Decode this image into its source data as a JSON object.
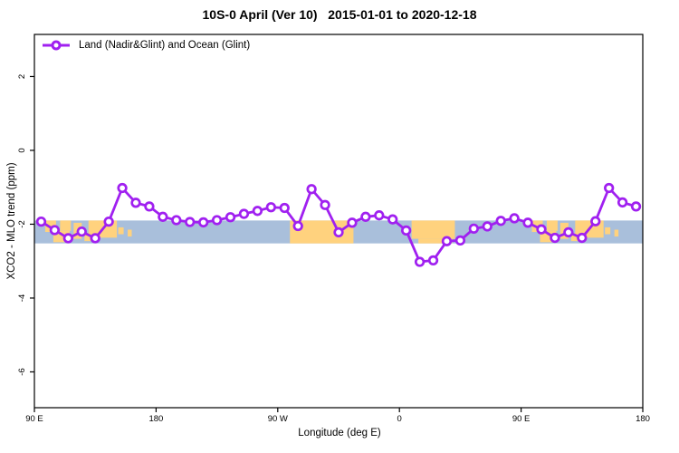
{
  "title": "10S-0 April (Ver 10)   2015-01-01 to 2020-12-18",
  "legend": {
    "label": "Land (Nadir&Glint) and Ocean (Glint)"
  },
  "colors": {
    "line": "#a020f0",
    "marker_fill": "#ffffff",
    "ocean_band": "#a9bfdb",
    "land_band": "#ffd27e",
    "frame": "#000000",
    "text": "#000000"
  },
  "chart_data": {
    "type": "line",
    "title": "10S-0 April (Ver 10)   2015-01-01 to 2020-12-18",
    "xlabel": "Longitude (deg E)",
    "ylabel": "XCO2 - MLO trend (ppm)",
    "xlim": [
      90,
      540
    ],
    "ylim": [
      -6.97,
      3.14
    ],
    "grid": false,
    "legend_position": "top-left-inside",
    "x_ticks": [
      {
        "value": 90,
        "label": "90 E"
      },
      {
        "value": 180,
        "label": "180"
      },
      {
        "value": 270,
        "label": "90 W"
      },
      {
        "value": 360,
        "label": "0"
      },
      {
        "value": 450,
        "label": "90 E"
      },
      {
        "value": 540,
        "label": "180"
      }
    ],
    "y_ticks": [
      {
        "value": 2,
        "label": "2"
      },
      {
        "value": 0,
        "label": "0"
      },
      {
        "value": -2,
        "label": "-2"
      },
      {
        "value": -4,
        "label": "-4"
      },
      {
        "value": -6,
        "label": "-6"
      }
    ],
    "series": [
      {
        "name": "Land (Nadir&Glint) and Ocean (Glint)",
        "marker": "open-circle",
        "x": [
          95,
          105,
          115,
          125,
          135,
          145,
          155,
          165,
          175,
          185,
          195,
          205,
          215,
          225,
          235,
          245,
          255,
          265,
          275,
          285,
          295,
          305,
          315,
          325,
          335,
          345,
          355,
          365,
          375,
          385,
          395,
          405,
          415,
          425,
          435,
          445,
          455,
          465,
          475,
          485,
          495,
          505,
          515,
          525,
          535
        ],
        "y": [
          -1.93,
          -2.16,
          -2.38,
          -2.2,
          -2.38,
          -1.93,
          -1.02,
          -1.42,
          -1.52,
          -1.8,
          -1.89,
          -1.94,
          -1.95,
          -1.89,
          -1.81,
          -1.72,
          -1.64,
          -1.54,
          -1.56,
          -2.05,
          -1.05,
          -1.48,
          -2.22,
          -1.96,
          -1.8,
          -1.76,
          -1.87,
          -2.17,
          -3.02,
          -2.98,
          -2.46,
          -2.44,
          -2.12,
          -2.06,
          -1.91,
          -1.84,
          -1.96,
          -2.14,
          -2.37,
          -2.22,
          -2.37,
          -1.92,
          -1.02,
          -1.41,
          -1.52
        ]
      }
    ],
    "reference_band": {
      "description": "land-ocean map strip for 10S-0 latitude band",
      "y_top": -1.9,
      "y_bottom": -2.52,
      "land_segments": [
        {
          "x0": 98,
          "x1": 106,
          "f0": 0.0,
          "f1": 0.5
        },
        {
          "x0": 104,
          "x1": 116,
          "f0": 0.45,
          "f1": 0.95
        },
        {
          "x0": 109,
          "x1": 117,
          "f0": 0.0,
          "f1": 0.45
        },
        {
          "x0": 119,
          "x1": 125,
          "f0": 0.1,
          "f1": 0.8
        },
        {
          "x0": 127,
          "x1": 132,
          "f0": 0.55,
          "f1": 0.9
        },
        {
          "x0": 130,
          "x1": 151,
          "f0": 0.0,
          "f1": 0.75
        },
        {
          "x0": 152,
          "x1": 156,
          "f0": 0.3,
          "f1": 0.6
        },
        {
          "x0": 159,
          "x1": 162,
          "f0": 0.4,
          "f1": 0.7
        },
        {
          "x0": 279,
          "x1": 326,
          "f0": 0.0,
          "f1": 1.0
        },
        {
          "x0": 369,
          "x1": 401,
          "f0": 0.0,
          "f1": 0.8
        },
        {
          "x0": 374,
          "x1": 399,
          "f0": 0.8,
          "f1": 1.0
        },
        {
          "x0": 458,
          "x1": 466,
          "f0": 0.0,
          "f1": 0.5
        },
        {
          "x0": 464,
          "x1": 476,
          "f0": 0.45,
          "f1": 0.95
        },
        {
          "x0": 469,
          "x1": 477,
          "f0": 0.0,
          "f1": 0.45
        },
        {
          "x0": 479,
          "x1": 485,
          "f0": 0.1,
          "f1": 0.8
        },
        {
          "x0": 487,
          "x1": 492,
          "f0": 0.55,
          "f1": 0.9
        },
        {
          "x0": 490,
          "x1": 511,
          "f0": 0.0,
          "f1": 0.75
        },
        {
          "x0": 512,
          "x1": 516,
          "f0": 0.3,
          "f1": 0.6
        },
        {
          "x0": 519,
          "x1": 522,
          "f0": 0.4,
          "f1": 0.7
        }
      ]
    }
  }
}
